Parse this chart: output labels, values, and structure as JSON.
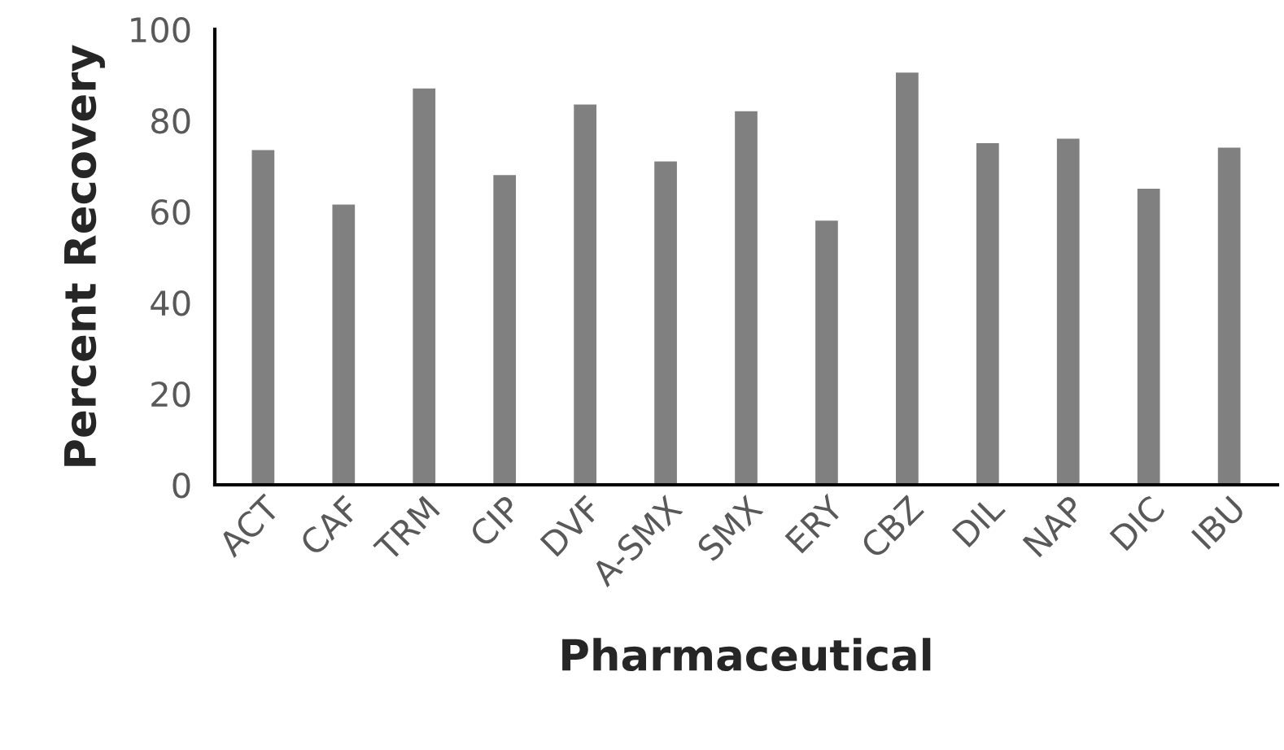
{
  "chart_data": {
    "type": "bar",
    "xlabel": "Pharmaceutical",
    "ylabel": "Percent Recovery",
    "categories": [
      "ACT",
      "CAF",
      "TRM",
      "CIP",
      "DVF",
      "A-SMX",
      "SMX",
      "ERY",
      "CBZ",
      "DIL",
      "NAP",
      "DIC",
      "IBU"
    ],
    "values": [
      73.5,
      61.5,
      87,
      68,
      83.5,
      71,
      82,
      58,
      90.5,
      75,
      76,
      65,
      74
    ],
    "color": "#808080",
    "ylim": [
      0,
      100
    ],
    "yticks": [
      0,
      20,
      40,
      60,
      80,
      100
    ],
    "grid": false
  }
}
